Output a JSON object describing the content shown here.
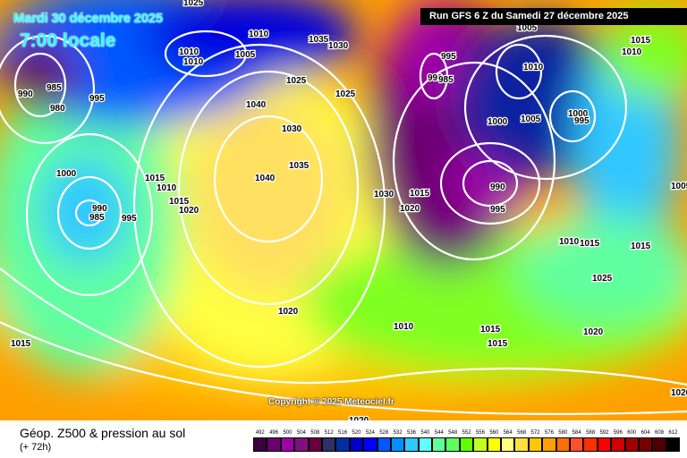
{
  "header": {
    "date": "Mardi 30 décembre 2025",
    "time": "7:00 locale",
    "run": "Run GFS 6 Z du Samedi 27 décembre 2025"
  },
  "copyright": "Copyright © 2025 Meteociel.fr",
  "footer": {
    "title": "Géop. Z500 & pression au sol",
    "subtitle": "(+ 72h)"
  },
  "legend": {
    "values": [
      "492",
      "496",
      "500",
      "504",
      "508",
      "512",
      "516",
      "520",
      "524",
      "528",
      "532",
      "536",
      "540",
      "544",
      "548",
      "552",
      "556",
      "560",
      "564",
      "568",
      "572",
      "576",
      "580",
      "584",
      "588",
      "592",
      "596",
      "600",
      "604",
      "608",
      "612"
    ],
    "colors": [
      "#3c0040",
      "#6a0070",
      "#a000a8",
      "#801080",
      "#680040",
      "#303068",
      "#0030a0",
      "#0000c8",
      "#0000ff",
      "#0058ff",
      "#0090ff",
      "#30c8ff",
      "#60ffff",
      "#60ff98",
      "#60ff60",
      "#60ff00",
      "#c0ff20",
      "#ffff00",
      "#ffff80",
      "#ffe040",
      "#ffc800",
      "#ffa000",
      "#ff7000",
      "#ff5030",
      "#ff3000",
      "#ff0000",
      "#d00000",
      "#a00000",
      "#780000",
      "#500000",
      "#000000"
    ]
  },
  "pressure_labels": [
    "1025",
    "1010",
    "1035",
    "1030",
    "1010",
    "1005",
    "1010",
    "985",
    "990",
    "995",
    "980",
    "1025",
    "1025",
    "1040",
    "1030",
    "1035",
    "1040",
    "1000",
    "1015",
    "1010",
    "1015",
    "1020",
    "990",
    "985",
    "995",
    "1030",
    "1015",
    "1020",
    "995",
    "990",
    "985",
    "1010",
    "1000",
    "1005",
    "1000",
    "995",
    "990",
    "995",
    "1015",
    "1010",
    "1005",
    "1010",
    "1015",
    "1015",
    "1025",
    "1020",
    "1010",
    "1015",
    "1015",
    "1020",
    "1015",
    "1020",
    "1020",
    "1005"
  ]
}
